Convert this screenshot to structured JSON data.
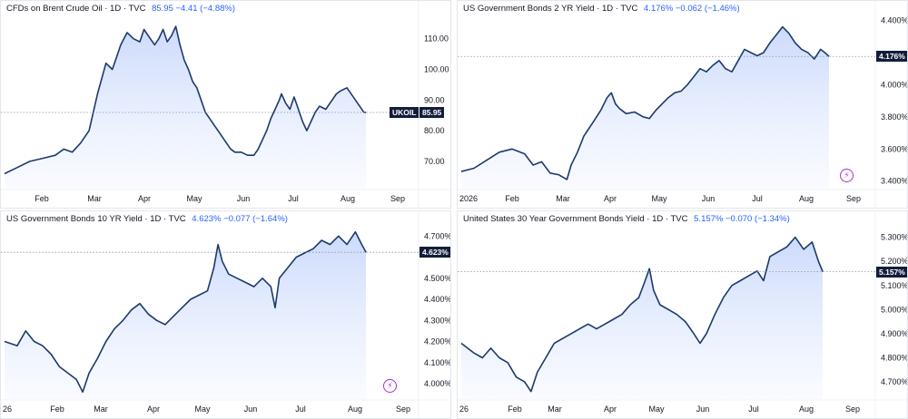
{
  "colors": {
    "line": "#1b3a6b",
    "fill_top": "#c9d8fb",
    "fill_bottom": "#f6f9ff",
    "tag_bg": "#131d3b",
    "header_value": "#2962ff",
    "event_icon": "#a62bd1"
  },
  "chart_data": [
    {
      "type": "area",
      "title": "CFDs on Brent Crude Oil · 1D · TVC",
      "header_values": "85.95 −4.41 (−4.88%)",
      "x_ticks": [
        "Feb",
        "Mar",
        "Apr",
        "May",
        "Jun",
        "Jul",
        "Aug",
        "Sep"
      ],
      "y_ticks": [
        "110.00",
        "100.00",
        "90.00",
        "80.00",
        "70.00"
      ],
      "ylim": [
        62,
        117
      ],
      "symbol_tag": "UKOIL",
      "last_value_label": "85.95",
      "last_value": 85.95,
      "event_icon": false,
      "points": [
        [
          0,
          66
        ],
        [
          6,
          68
        ],
        [
          12,
          70
        ],
        [
          18,
          71
        ],
        [
          24,
          72
        ],
        [
          28,
          74
        ],
        [
          32,
          73
        ],
        [
          36,
          76
        ],
        [
          40,
          80
        ],
        [
          44,
          92
        ],
        [
          48,
          102
        ],
        [
          51,
          100
        ],
        [
          53,
          104
        ],
        [
          55,
          108
        ],
        [
          58,
          112
        ],
        [
          61,
          110
        ],
        [
          64,
          109
        ],
        [
          66,
          113
        ],
        [
          69,
          110
        ],
        [
          71,
          108
        ],
        [
          73,
          110
        ],
        [
          75,
          113
        ],
        [
          77,
          109
        ],
        [
          79,
          111
        ],
        [
          81,
          114
        ],
        [
          83,
          108
        ],
        [
          85,
          103
        ],
        [
          87,
          100
        ],
        [
          89,
          96
        ],
        [
          91,
          94
        ],
        [
          93,
          90
        ],
        [
          95,
          86
        ],
        [
          97,
          84
        ],
        [
          99,
          82
        ],
        [
          101,
          80
        ],
        [
          103,
          78
        ],
        [
          105,
          76
        ],
        [
          107,
          74
        ],
        [
          109,
          73
        ],
        [
          112,
          73
        ],
        [
          115,
          72
        ],
        [
          118,
          72
        ],
        [
          120,
          74
        ],
        [
          122,
          77
        ],
        [
          124,
          80
        ],
        [
          126,
          84
        ],
        [
          128,
          87
        ],
        [
          130,
          90
        ],
        [
          131,
          92
        ],
        [
          133,
          89
        ],
        [
          135,
          87
        ],
        [
          137,
          91
        ],
        [
          139,
          87
        ],
        [
          141,
          83
        ],
        [
          143,
          80
        ],
        [
          145,
          83
        ],
        [
          147,
          86
        ],
        [
          149,
          88
        ],
        [
          152,
          87
        ],
        [
          155,
          90
        ],
        [
          157,
          92
        ],
        [
          159,
          93
        ],
        [
          162,
          94
        ],
        [
          165,
          91
        ],
        [
          168,
          88
        ],
        [
          170,
          86
        ],
        [
          171,
          85.95
        ]
      ]
    },
    {
      "type": "area",
      "title": "US Government Bonds 2 YR Yield · 1D · TVC",
      "header_values": "4.176% −0.062 (−1.46%)",
      "x_ticks": [
        "2026",
        "Feb",
        "Mar",
        "Apr",
        "May",
        "Jun",
        "Jul",
        "Aug",
        "Sep"
      ],
      "y_ticks": [
        "4.400%",
        "4.176%",
        "4.000%",
        "3.800%",
        "3.600%",
        "3.400%"
      ],
      "ylim": [
        3.37,
        4.42
      ],
      "symbol_tag": "",
      "last_value_label": "4.176%",
      "last_value": 4.176,
      "event_icon": true,
      "points": [
        [
          0,
          3.46
        ],
        [
          6,
          3.48
        ],
        [
          12,
          3.53
        ],
        [
          18,
          3.58
        ],
        [
          24,
          3.6
        ],
        [
          30,
          3.57
        ],
        [
          34,
          3.5
        ],
        [
          38,
          3.52
        ],
        [
          42,
          3.45
        ],
        [
          46,
          3.44
        ],
        [
          50,
          3.41
        ],
        [
          52,
          3.5
        ],
        [
          55,
          3.58
        ],
        [
          58,
          3.68
        ],
        [
          60,
          3.72
        ],
        [
          63,
          3.78
        ],
        [
          66,
          3.84
        ],
        [
          69,
          3.92
        ],
        [
          71,
          3.95
        ],
        [
          73,
          3.88
        ],
        [
          75,
          3.85
        ],
        [
          78,
          3.82
        ],
        [
          82,
          3.83
        ],
        [
          86,
          3.8
        ],
        [
          89,
          3.79
        ],
        [
          92,
          3.84
        ],
        [
          95,
          3.88
        ],
        [
          98,
          3.92
        ],
        [
          101,
          3.95
        ],
        [
          104,
          3.96
        ],
        [
          107,
          4.0
        ],
        [
          110,
          4.05
        ],
        [
          113,
          4.1
        ],
        [
          116,
          4.08
        ],
        [
          119,
          4.12
        ],
        [
          122,
          4.15
        ],
        [
          125,
          4.1
        ],
        [
          128,
          4.08
        ],
        [
          131,
          4.15
        ],
        [
          134,
          4.22
        ],
        [
          137,
          4.2
        ],
        [
          140,
          4.18
        ],
        [
          143,
          4.2
        ],
        [
          146,
          4.26
        ],
        [
          149,
          4.31
        ],
        [
          152,
          4.36
        ],
        [
          155,
          4.32
        ],
        [
          158,
          4.26
        ],
        [
          161,
          4.22
        ],
        [
          164,
          4.2
        ],
        [
          167,
          4.16
        ],
        [
          170,
          4.22
        ],
        [
          172,
          4.2
        ],
        [
          174,
          4.176
        ]
      ]
    },
    {
      "type": "area",
      "title": "US Government Bonds 10 YR Yield · 1D · TVC",
      "header_values": "4.623% −0.077 (−1.64%)",
      "x_ticks": [
        "26",
        "Feb",
        "Mar",
        "Apr",
        "May",
        "Jun",
        "Jul",
        "Aug",
        "Sep"
      ],
      "y_ticks": [
        "4.700%",
        "4.623%",
        "4.500%",
        "4.400%",
        "4.300%",
        "4.200%",
        "4.100%",
        "4.000%"
      ],
      "ylim": [
        3.94,
        4.74
      ],
      "symbol_tag": "",
      "last_value_label": "4.623%",
      "last_value": 4.623,
      "event_icon": true,
      "points": [
        [
          0,
          4.2
        ],
        [
          6,
          4.18
        ],
        [
          10,
          4.25
        ],
        [
          14,
          4.2
        ],
        [
          18,
          4.18
        ],
        [
          22,
          4.14
        ],
        [
          26,
          4.08
        ],
        [
          30,
          4.05
        ],
        [
          34,
          4.02
        ],
        [
          37,
          3.96
        ],
        [
          40,
          4.05
        ],
        [
          44,
          4.12
        ],
        [
          48,
          4.2
        ],
        [
          52,
          4.26
        ],
        [
          56,
          4.3
        ],
        [
          60,
          4.35
        ],
        [
          64,
          4.38
        ],
        [
          68,
          4.33
        ],
        [
          72,
          4.3
        ],
        [
          76,
          4.28
        ],
        [
          80,
          4.32
        ],
        [
          84,
          4.36
        ],
        [
          88,
          4.4
        ],
        [
          92,
          4.42
        ],
        [
          96,
          4.44
        ],
        [
          99,
          4.55
        ],
        [
          101,
          4.66
        ],
        [
          103,
          4.58
        ],
        [
          106,
          4.52
        ],
        [
          110,
          4.5
        ],
        [
          114,
          4.48
        ],
        [
          118,
          4.46
        ],
        [
          122,
          4.5
        ],
        [
          126,
          4.46
        ],
        [
          128,
          4.36
        ],
        [
          130,
          4.5
        ],
        [
          134,
          4.55
        ],
        [
          138,
          4.6
        ],
        [
          142,
          4.62
        ],
        [
          146,
          4.64
        ],
        [
          150,
          4.68
        ],
        [
          154,
          4.66
        ],
        [
          158,
          4.7
        ],
        [
          162,
          4.66
        ],
        [
          166,
          4.72
        ],
        [
          169,
          4.66
        ],
        [
          171,
          4.623
        ]
      ]
    },
    {
      "type": "area",
      "title": "United States 30 Year Government Bonds Yield · 1D · TVC",
      "header_values": "5.157% −0.070 (−1.34%)",
      "x_ticks": [
        "26",
        "Feb",
        "Mar",
        "Apr",
        "May",
        "Jun",
        "Jul",
        "Aug",
        "Sep"
      ],
      "y_ticks": [
        "5.300%",
        "5.200%",
        "5.157%",
        "5.100%",
        "5.000%",
        "4.900%",
        "4.800%",
        "4.700%"
      ],
      "ylim": [
        4.64,
        5.34
      ],
      "symbol_tag": "",
      "last_value_label": "5.157%",
      "last_value": 5.157,
      "event_icon": false,
      "points": [
        [
          0,
          4.86
        ],
        [
          6,
          4.82
        ],
        [
          10,
          4.8
        ],
        [
          14,
          4.84
        ],
        [
          18,
          4.8
        ],
        [
          22,
          4.78
        ],
        [
          26,
          4.72
        ],
        [
          30,
          4.7
        ],
        [
          33,
          4.66
        ],
        [
          36,
          4.74
        ],
        [
          40,
          4.8
        ],
        [
          44,
          4.86
        ],
        [
          48,
          4.88
        ],
        [
          52,
          4.9
        ],
        [
          56,
          4.92
        ],
        [
          60,
          4.94
        ],
        [
          64,
          4.92
        ],
        [
          68,
          4.94
        ],
        [
          72,
          4.96
        ],
        [
          76,
          4.98
        ],
        [
          80,
          5.02
        ],
        [
          84,
          5.05
        ],
        [
          87,
          5.12
        ],
        [
          89,
          5.17
        ],
        [
          91,
          5.08
        ],
        [
          94,
          5.02
        ],
        [
          98,
          5.0
        ],
        [
          102,
          4.98
        ],
        [
          106,
          4.95
        ],
        [
          110,
          4.9
        ],
        [
          113,
          4.86
        ],
        [
          116,
          4.9
        ],
        [
          120,
          4.98
        ],
        [
          124,
          5.05
        ],
        [
          128,
          5.1
        ],
        [
          132,
          5.12
        ],
        [
          136,
          5.14
        ],
        [
          140,
          5.16
        ],
        [
          143,
          5.12
        ],
        [
          146,
          5.22
        ],
        [
          150,
          5.24
        ],
        [
          154,
          5.26
        ],
        [
          158,
          5.3
        ],
        [
          162,
          5.25
        ],
        [
          166,
          5.28
        ],
        [
          169,
          5.2
        ],
        [
          171,
          5.157
        ]
      ]
    }
  ]
}
